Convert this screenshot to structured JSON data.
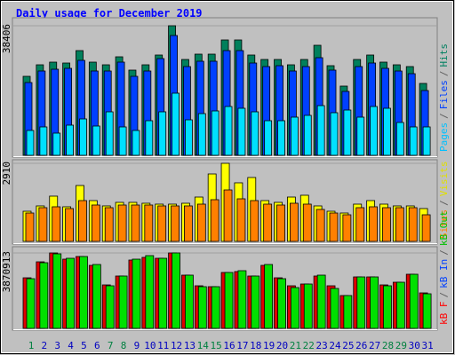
{
  "chart_data": {
    "type": "bar",
    "title": "Daily usage for December 2019",
    "title_color": "#0000ff",
    "categories": [
      "1",
      "2",
      "3",
      "4",
      "5",
      "6",
      "7",
      "8",
      "9",
      "10",
      "11",
      "12",
      "13",
      "14",
      "15",
      "16",
      "17",
      "18",
      "19",
      "20",
      "21",
      "22",
      "23",
      "24",
      "25",
      "26",
      "27",
      "28",
      "29",
      "30",
      "31"
    ],
    "category_colors": [
      "#008040",
      "#0000c0",
      "#0000c0",
      "#0000c0",
      "#0000c0",
      "#0000c0",
      "#008040",
      "#008040",
      "#0000c0",
      "#0000c0",
      "#0000c0",
      "#0000c0",
      "#0000c0",
      "#008040",
      "#008040",
      "#0000c0",
      "#0000c0",
      "#0000c0",
      "#0000c0",
      "#0000c0",
      "#008040",
      "#008040",
      "#0000c0",
      "#0000c0",
      "#0000c0",
      "#0000c0",
      "#0000c0",
      "#008040",
      "#008040",
      "#0000c0",
      "#0000c0"
    ],
    "panels": [
      {
        "ylim": [
          0,
          38406
        ],
        "yticks": [
          38406
        ],
        "legend": [
          {
            "text": "Pages",
            "color": "#00c0ff"
          },
          {
            "text": "/",
            "color": "#606060"
          },
          {
            "text": "Files",
            "color": "#0040ff"
          },
          {
            "text": "/",
            "color": "#606060"
          },
          {
            "text": "Hits",
            "color": "#008060"
          }
        ],
        "series": [
          {
            "color": "#00805c",
            "values": [
              23412,
              26831,
              27620,
              27357,
              31040,
              27620,
              26831,
              29199,
              25253,
              26831,
              29725,
              38406,
              28409,
              29988,
              29988,
              34197,
              34197,
              29725,
              28409,
              28409,
              26831,
              28409,
              32618,
              26568,
              20518,
              28409,
              29725,
              27620,
              26831,
              26305,
              21307
            ]
          },
          {
            "color": "#0040ff",
            "values": [
              21570,
              24990,
              25516,
              25779,
              28146,
              24990,
              24990,
              27620,
              23411,
              24990,
              28672,
              35512,
              26305,
              27883,
              27883,
              31040,
              31040,
              27357,
              26305,
              26568,
              24990,
              26305,
              28936,
              25253,
              18940,
              26305,
              27357,
              25779,
              24990,
              24201,
              19203
            ]
          },
          {
            "color": "#00e0ff",
            "values": [
              7366,
              8418,
              6576,
              8944,
              10785,
              8681,
              12890,
              8418,
              7366,
              10259,
              12890,
              18414,
              10522,
              12364,
              13153,
              14468,
              13942,
              12890,
              10259,
              10259,
              11311,
              11838,
              14731,
              12627,
              13416,
              11311,
              14468,
              13942,
              9733,
              8418,
              8418
            ]
          }
        ]
      },
      {
        "ylim": [
          0,
          2910
        ],
        "yticks": [
          2910
        ],
        "legend": [
          {
            "text": "Sites",
            "color": "#ff8000"
          },
          {
            "text": "/",
            "color": "#606060"
          },
          {
            "text": "Visits",
            "color": "#e0e000"
          }
        ],
        "series": [
          {
            "color": "#ffff00",
            "values": [
              1124,
              1323,
              1687,
              1290,
              2083,
              1521,
              1323,
              1455,
              1455,
              1422,
              1389,
              1389,
              1422,
              1653,
              2513,
              2910,
              2183,
              2381,
              1521,
              1455,
              1653,
              1720,
              1323,
              1124,
              1058,
              1389,
              1521,
              1389,
              1323,
              1323,
              1224
            ]
          },
          {
            "color": "#ff8000",
            "values": [
              1058,
              1257,
              1290,
              1224,
              1521,
              1356,
              1257,
              1356,
              1356,
              1356,
              1323,
              1323,
              1323,
              1389,
              1554,
              1918,
              1587,
              1521,
              1389,
              1356,
              1422,
              1389,
              1191,
              1058,
              992,
              1257,
              1290,
              1257,
              1257,
              1257,
              992
            ]
          }
        ]
      },
      {
        "ylim": [
          0,
          3870913
        ],
        "yticks": [
          3870913
        ],
        "legend": [
          {
            "text": "kB F",
            "color": "#ff0000"
          },
          {
            "text": "/",
            "color": "#606060"
          },
          {
            "text": "kB In",
            "color": "#0040ff"
          },
          {
            "text": "/",
            "color": "#606060"
          },
          {
            "text": "kB Out",
            "color": "#00c000"
          }
        ],
        "series": [
          {
            "color": "#e00000",
            "values": [
              2595780,
              3415500,
              3870900,
              3552120,
              3688740,
              3233340,
              2231460,
              2686860,
              3506580,
              3643200,
              3597660,
              3870900,
              2732400,
              2185920,
              2140380,
              2869020,
              2914560,
              2686860,
              3233340,
              2595780,
              2185920,
              2277000,
              2686860,
              2185920,
              1684980,
              2641320,
              2641320,
              2231460,
              2368080,
              2777940,
              1821600
            ]
          },
          {
            "color": "#00e000",
            "values": [
              2550240,
              3369960,
              3825360,
              3597660,
              3688740,
              3278880,
              2185920,
              2686860,
              3552120,
              3734280,
              3597660,
              3870913,
              2732400,
              2140380,
              2140380,
              2869020,
              2960100,
              2686860,
              3278880,
              2550240,
              2094840,
              2277000,
              2732400,
              2049300,
              1684980,
              2641320,
              2641320,
              2185920,
              2368080,
              2777940,
              1776060
            ]
          }
        ]
      }
    ]
  }
}
